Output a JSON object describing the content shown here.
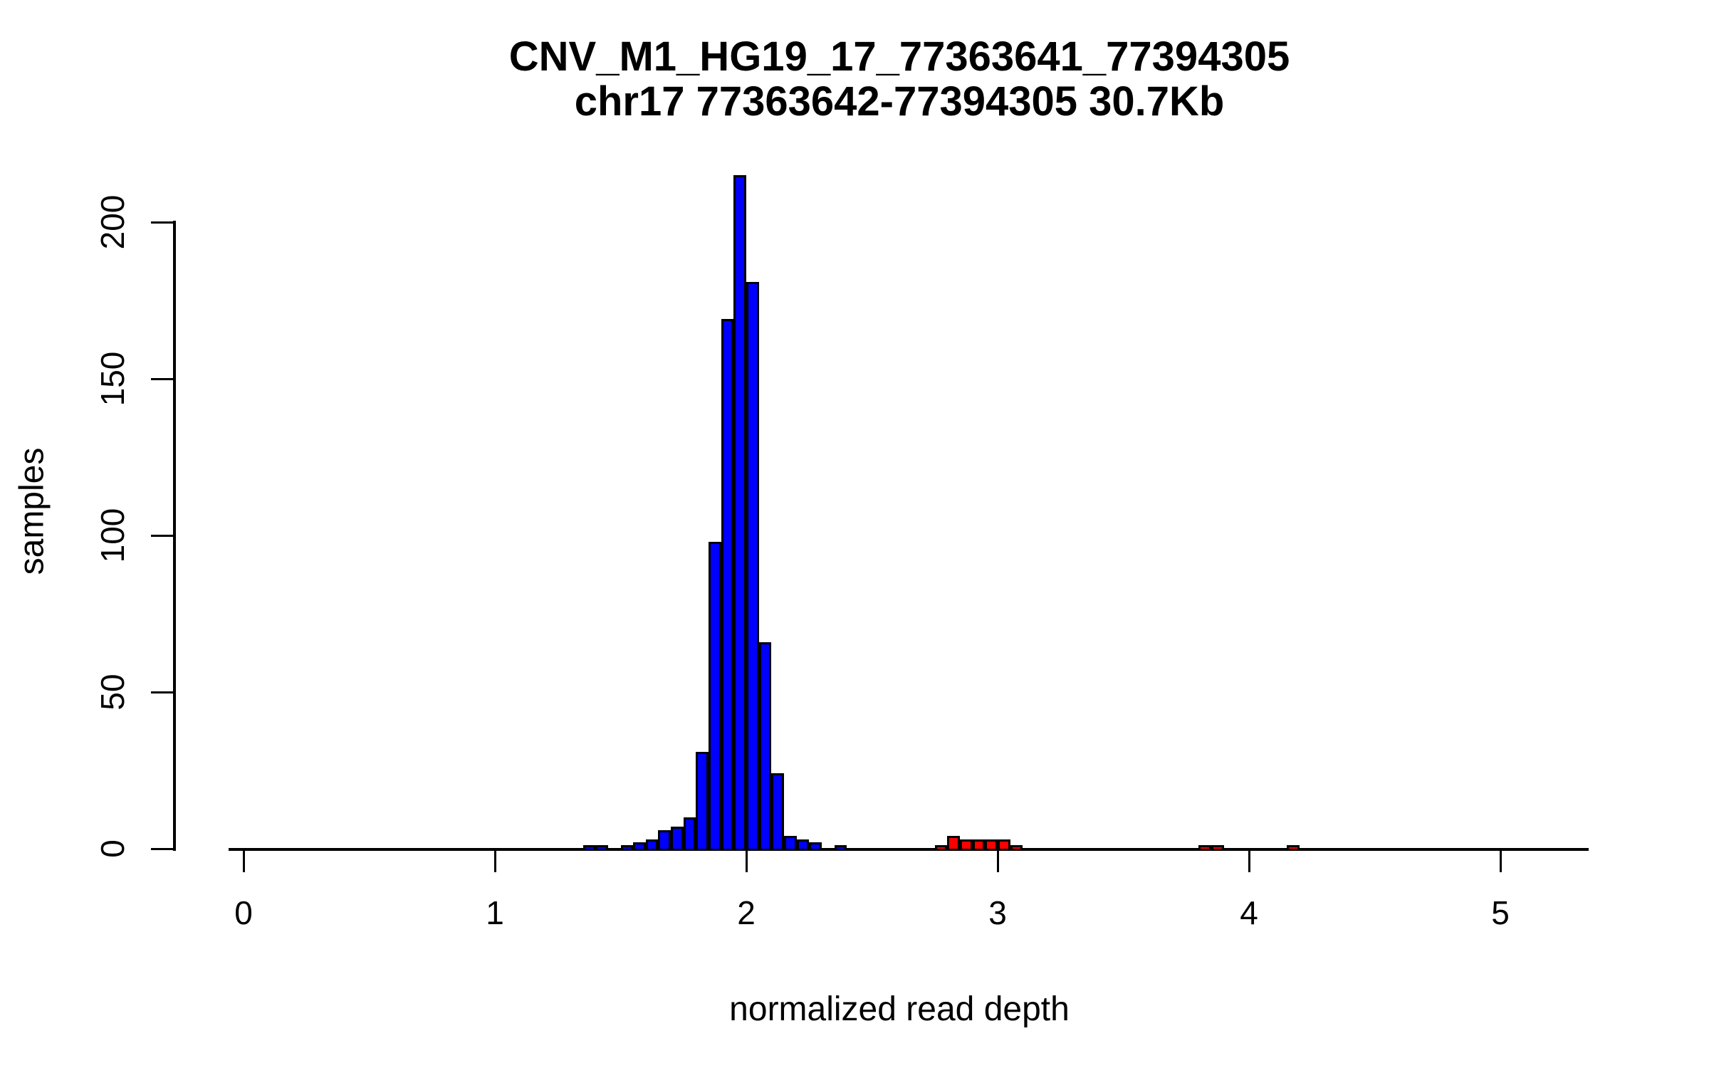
{
  "title": {
    "line1": "CNV_M1_HG19_17_77363641_77394305",
    "line2": "chr17 77363642-77394305 30.7Kb"
  },
  "axes": {
    "x_label": "normalized read depth",
    "y_label": "samples",
    "x_ticks": [
      0,
      1,
      2,
      3,
      4,
      5
    ],
    "y_ticks": [
      0,
      50,
      100,
      150,
      200
    ]
  },
  "colors": {
    "blue": "#0000ff",
    "red": "#ff0000",
    "outline": "#000000",
    "background": "#ffffff",
    "text": "#000000"
  },
  "chart_data": {
    "type": "bar",
    "subtype": "histogram",
    "title": "CNV_M1_HG19_17_77363641_77394305",
    "subtitle": "chr17 77363642-77394305 30.7Kb",
    "xlabel": "normalized read depth",
    "ylabel": "samples",
    "xlim": [
      -0.06,
      5.35
    ],
    "ylim": [
      0,
      215
    ],
    "grid": false,
    "legend": "none",
    "bin_width": 0.05,
    "bins": [
      {
        "x": 1.35,
        "count": 1,
        "color": "blue"
      },
      {
        "x": 1.4,
        "count": 1,
        "color": "blue"
      },
      {
        "x": 1.5,
        "count": 1,
        "color": "blue"
      },
      {
        "x": 1.55,
        "count": 2,
        "color": "blue"
      },
      {
        "x": 1.6,
        "count": 3,
        "color": "blue"
      },
      {
        "x": 1.65,
        "count": 6,
        "color": "blue"
      },
      {
        "x": 1.7,
        "count": 7,
        "color": "blue"
      },
      {
        "x": 1.75,
        "count": 10,
        "color": "blue"
      },
      {
        "x": 1.8,
        "count": 31,
        "color": "blue"
      },
      {
        "x": 1.85,
        "count": 98,
        "color": "blue"
      },
      {
        "x": 1.9,
        "count": 169,
        "color": "blue"
      },
      {
        "x": 1.95,
        "count": 215,
        "color": "blue"
      },
      {
        "x": 2.0,
        "count": 181,
        "color": "blue"
      },
      {
        "x": 2.05,
        "count": 66,
        "color": "blue"
      },
      {
        "x": 2.1,
        "count": 24,
        "color": "blue"
      },
      {
        "x": 2.15,
        "count": 4,
        "color": "blue"
      },
      {
        "x": 2.2,
        "count": 3,
        "color": "blue"
      },
      {
        "x": 2.25,
        "count": 2,
        "color": "blue"
      },
      {
        "x": 2.35,
        "count": 1,
        "color": "blue"
      },
      {
        "x": 2.75,
        "count": 1,
        "color": "red"
      },
      {
        "x": 2.8,
        "count": 4,
        "color": "red"
      },
      {
        "x": 2.85,
        "count": 3,
        "color": "red"
      },
      {
        "x": 2.9,
        "count": 3,
        "color": "red"
      },
      {
        "x": 2.95,
        "count": 3,
        "color": "red"
      },
      {
        "x": 3.0,
        "count": 3,
        "color": "red"
      },
      {
        "x": 3.05,
        "count": 1,
        "color": "red"
      },
      {
        "x": 3.8,
        "count": 1,
        "color": "red"
      },
      {
        "x": 3.85,
        "count": 1,
        "color": "red"
      },
      {
        "x": 4.15,
        "count": 1,
        "color": "red"
      }
    ]
  }
}
